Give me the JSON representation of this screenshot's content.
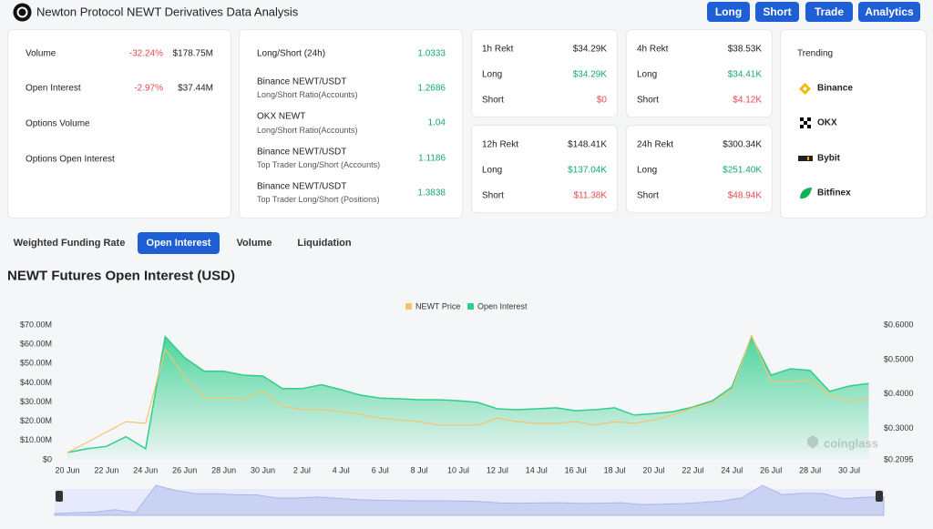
{
  "header": {
    "title": "Newton Protocol NEWT Derivatives Data Analysis",
    "buttons": [
      "Long",
      "Short",
      "Trade",
      "Analytics"
    ]
  },
  "summary": {
    "rows": [
      {
        "label": "Volume",
        "change": "-32.24%",
        "value": "$178.75M"
      },
      {
        "label": "Open Interest",
        "change": "-2.97%",
        "value": "$37.44M"
      },
      {
        "label": "Options Volume"
      },
      {
        "label": "Options Open Interest"
      }
    ]
  },
  "ratios": [
    {
      "label": "Long/Short (24h)",
      "value": 1.0333
    },
    {
      "exchange": "Binance NEWT/USDT",
      "label": "Long/Short Ratio(Accounts)",
      "value": 1.2686
    },
    {
      "exchange": "OKX NEWT",
      "label": "Long/Short Ratio(Accounts)",
      "value": 1.04
    },
    {
      "exchange": "Binance NEWT/USDT",
      "label": "Top Trader Long/Short (Accounts)",
      "value": 1.1186
    },
    {
      "exchange": "Binance NEWT/USDT",
      "label": "Top Trader Long/Short (Positions)",
      "value": 1.3838
    }
  ],
  "rekt": [
    {
      "title": "1h Rekt",
      "total": "$34.29K",
      "long_label": "Long",
      "long": "$34.29K",
      "short_label": "Short",
      "short": "$0"
    },
    {
      "title": "4h Rekt",
      "total": "$38.53K",
      "long_label": "Long",
      "long": "$34.41K",
      "short_label": "Short",
      "short": "$4.12K"
    },
    {
      "title": "12h Rekt",
      "total": "$148.41K",
      "long_label": "Long",
      "long": "$137.04K",
      "short_label": "Short",
      "short": "$11.38K"
    },
    {
      "title": "24h Rekt",
      "total": "$300.34K",
      "long_label": "Long",
      "long": "$251.40K",
      "short_label": "Short",
      "short": "$48.94K"
    }
  ],
  "trending": {
    "title": "Trending",
    "exchanges": [
      "Binance",
      "OKX",
      "Bybit",
      "Bitfinex"
    ]
  },
  "tabs": [
    "Weighted Funding Rate",
    "Open Interest",
    "Volume",
    "Liquidation"
  ],
  "chart_data": {
    "type": "line",
    "title": "NEWT Futures Open Interest (USD)",
    "watermark": "coinglass",
    "legend": "top",
    "categories": [
      "20 Jun",
      null,
      "22 Jun",
      null,
      "24 Jun",
      null,
      "26 Jun",
      null,
      "28 Jun",
      null,
      "30 Jun",
      null,
      "2 Jul",
      null,
      "4 Jul",
      null,
      "6 Jul",
      null,
      "8 Jul",
      null,
      "10 Jul",
      null,
      "12 Jul",
      null,
      "14 Jul",
      null,
      "16 Jul",
      null,
      "18 Jul",
      null,
      "20 Jul",
      null,
      "22 Jul",
      null,
      "24 Jul",
      null,
      "26 Jul",
      null,
      "28 Jul",
      null,
      "30 Jul",
      null
    ],
    "series": [
      {
        "name": "NEWT Price",
        "color": "#f2c46d",
        "axis": "y2",
        "values": [
          0.23,
          0.26,
          0.29,
          0.32,
          0.315,
          0.53,
          0.45,
          0.39,
          0.39,
          0.385,
          0.41,
          0.365,
          0.355,
          0.355,
          0.35,
          0.34,
          0.33,
          0.325,
          0.32,
          0.31,
          0.31,
          0.31,
          0.33,
          0.32,
          0.315,
          0.315,
          0.32,
          0.31,
          0.32,
          0.315,
          0.325,
          0.34,
          0.36,
          0.375,
          0.41,
          0.57,
          0.435,
          0.435,
          0.44,
          0.4,
          0.375,
          0.39
        ]
      },
      {
        "name": "Open Interest",
        "color": "#2fcf8b",
        "area": true,
        "values": [
          3.8,
          5.7,
          7,
          12,
          5.7,
          64,
          53,
          46,
          46,
          44,
          43.5,
          37,
          37,
          39,
          36.4,
          33.6,
          32,
          31.7,
          31.2,
          31.2,
          30.7,
          29.8,
          26.5,
          26,
          26.5,
          27,
          25.5,
          26,
          27,
          23.2,
          24,
          25,
          27.4,
          30.7,
          37.8,
          63.9,
          44,
          47.3,
          46.4,
          35.5,
          38.3,
          39.7
        ]
      }
    ],
    "ylim": [
      0,
      70
    ],
    "yticks": [
      {
        "value": 0,
        "label": "$0"
      },
      {
        "value": 10,
        "label": "$10.00M"
      },
      {
        "value": 20,
        "label": "$20.00M"
      },
      {
        "value": 30,
        "label": "$30.00M"
      },
      {
        "value": 40,
        "label": "$40.00M"
      },
      {
        "value": 50,
        "label": "$50.00M"
      },
      {
        "value": 60,
        "label": "$60.00M"
      },
      {
        "value": 70,
        "label": "$70.00M"
      }
    ],
    "y2lim": [
      0.2095,
      0.6
    ],
    "y2ticks": [
      {
        "value": 0.2095,
        "label": "$0.2095"
      },
      {
        "value": 0.3,
        "label": "$0.3000"
      },
      {
        "value": 0.4,
        "label": "$0.4000"
      },
      {
        "value": 0.5,
        "label": "$0.5000"
      },
      {
        "value": 0.6,
        "label": "$0.6000"
      }
    ],
    "grid": false
  }
}
